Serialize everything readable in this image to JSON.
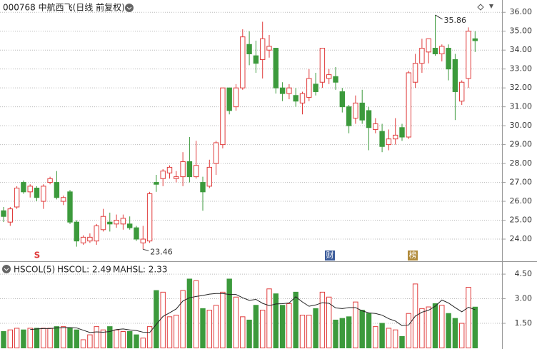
{
  "chart_data": [
    {
      "type": "candlestick",
      "title": "000768 中航西飞(日线 前复权)",
      "up_color": "#e03c3c",
      "down_color": "#3c9a3c",
      "open": [
        25.5,
        24.9,
        25.7,
        27.0,
        26.5,
        26.7,
        26.0,
        27.0,
        27.0,
        26.0,
        26.5,
        24.9,
        23.8,
        23.9,
        23.9,
        24.5,
        24.9,
        24.8,
        24.8,
        24.8,
        24.6,
        23.8,
        23.9,
        27.0,
        27.2,
        27.5,
        27.2,
        27.3,
        28.1,
        27.3,
        27.0,
        26.8,
        28.0,
        29.0,
        32.0,
        31.0,
        32.0,
        34.3,
        33.7,
        33.5,
        34.0,
        34.1,
        32.0,
        31.7,
        31.6,
        31.2,
        31.5,
        32.2,
        32.3,
        32.5,
        32.6,
        31.8,
        31.0,
        30.4,
        31.2,
        30.8,
        29.8,
        29.7,
        29.0,
        29.3,
        29.9,
        29.4,
        32.3,
        33.3,
        33.9,
        34.1,
        33.8,
        34.1,
        33.5,
        31.3,
        32.5,
        34.6
      ],
      "close": [
        25.2,
        25.6,
        26.7,
        26.5,
        26.8,
        26.2,
        26.8,
        27.2,
        26.2,
        26.2,
        24.9,
        23.9,
        24.1,
        24.1,
        24.7,
        25.2,
        24.8,
        25.0,
        25.1,
        24.6,
        24.0,
        24.0,
        26.4,
        26.9,
        27.6,
        27.8,
        27.3,
        28.1,
        27.3,
        27.9,
        26.5,
        27.8,
        29.1,
        32.0,
        30.8,
        32.0,
        34.7,
        33.8,
        33.3,
        34.6,
        34.2,
        32.0,
        31.7,
        32.0,
        31.3,
        31.7,
        32.5,
        31.8,
        34.1,
        32.7,
        32.3,
        31.0,
        30.0,
        31.2,
        30.3,
        29.9,
        30.1,
        28.9,
        29.3,
        29.5,
        29.4,
        32.8,
        33.3,
        34.1,
        34.6,
        33.8,
        34.2,
        33.0,
        31.8,
        32.3,
        35.0,
        34.5
      ],
      "high": [
        25.7,
        25.7,
        26.8,
        27.1,
        26.9,
        26.8,
        26.9,
        27.3,
        27.6,
        26.3,
        26.6,
        25.0,
        24.2,
        24.3,
        24.8,
        25.6,
        25.4,
        25.3,
        25.3,
        25.2,
        24.7,
        24.7,
        26.5,
        27.4,
        27.7,
        27.9,
        27.6,
        28.6,
        29.4,
        29.2,
        27.3,
        28.2,
        29.2,
        32.0,
        32.0,
        32.2,
        35.1,
        35.0,
        34.5,
        35.5,
        34.8,
        34.1,
        32.3,
        32.2,
        32.0,
        31.8,
        33.0,
        32.8,
        34.1,
        33.0,
        33.1,
        32.0,
        31.1,
        31.6,
        31.9,
        31.0,
        30.4,
        30.1,
        29.8,
        30.4,
        30.1,
        32.9,
        33.8,
        34.6,
        34.6,
        35.86,
        34.3,
        34.3,
        33.8,
        32.4,
        35.2,
        35.0
      ],
      "low": [
        24.9,
        24.7,
        25.6,
        26.4,
        26.2,
        26.0,
        25.6,
        26.9,
        26.1,
        25.8,
        24.8,
        23.6,
        23.7,
        23.8,
        23.7,
        24.4,
        24.4,
        24.6,
        24.5,
        24.5,
        23.9,
        23.46,
        23.8,
        26.5,
        26.8,
        27.2,
        27.0,
        26.8,
        27.0,
        27.2,
        25.5,
        26.7,
        27.4,
        28.8,
        30.6,
        30.8,
        31.9,
        33.2,
        32.8,
        32.5,
        33.6,
        31.7,
        31.3,
        31.4,
        31.0,
        30.6,
        31.3,
        31.6,
        32.0,
        32.2,
        31.9,
        30.7,
        29.6,
        30.1,
        30.1,
        28.7,
        29.6,
        28.6,
        28.7,
        29.0,
        29.2,
        29.3,
        32.0,
        32.8,
        33.3,
        33.7,
        33.4,
        32.4,
        30.3,
        31.1,
        32.0,
        33.9
      ],
      "ylim": [
        23,
        36.5
      ],
      "yticks": [
        {
          "value": 24,
          "label": "24.00"
        },
        {
          "value": 25,
          "label": "25.00"
        },
        {
          "value": 26,
          "label": "26.00"
        },
        {
          "value": 27,
          "label": "27.00"
        },
        {
          "value": 28,
          "label": "28.00"
        },
        {
          "value": 29,
          "label": "29.00"
        },
        {
          "value": 30,
          "label": "30.00"
        },
        {
          "value": 31,
          "label": "31.00"
        },
        {
          "value": 32,
          "label": "32.00"
        },
        {
          "value": 33,
          "label": "33.00"
        },
        {
          "value": 34,
          "label": "34.00"
        },
        {
          "value": 35,
          "label": "35.00"
        },
        {
          "value": 36,
          "label": "36.00"
        }
      ],
      "max_label": "35.86",
      "min_label": "23.46",
      "markers": [
        "S",
        "财",
        "榜"
      ]
    },
    {
      "type": "bar",
      "title": "HSCOL(5)",
      "readouts": [
        "HSCOL: 2.49",
        "MAHSL: 2.33"
      ],
      "series": [
        {
          "name": "HSCOL",
          "values": [
            1.0,
            1.1,
            1.2,
            1.1,
            1.2,
            1.2,
            1.2,
            1.2,
            1.3,
            1.3,
            1.2,
            1.1,
            0.5,
            0.8,
            1.3,
            1.1,
            1.3,
            1.1,
            1.0,
            1.0,
            0.8,
            0.6,
            1.3,
            3.5,
            3.4,
            1.9,
            2.0,
            3.5,
            4.2,
            4.1,
            2.4,
            2.3,
            2.6,
            3.4,
            4.2,
            3.1,
            1.9,
            1.7,
            2.6,
            2.3,
            3.6,
            3.3,
            2.6,
            2.7,
            3.4,
            2.0,
            2.0,
            2.4,
            3.4,
            3.1,
            1.7,
            1.8,
            1.9,
            2.8,
            2.3,
            2.1,
            1.3,
            1.5,
            1.2,
            1.1,
            0.7,
            2.1,
            3.9,
            2.4,
            2.5,
            2.7,
            2.6,
            2.1,
            1.8,
            1.5,
            3.7,
            2.49
          ]
        },
        {
          "name": "MAHSL",
          "color": "#222222",
          "values": [
            null,
            null,
            null,
            null,
            1.12,
            1.16,
            1.18,
            1.18,
            1.22,
            1.24,
            1.24,
            1.22,
            1.08,
            0.94,
            0.98,
            0.96,
            1.0,
            1.12,
            1.16,
            1.1,
            1.06,
            0.96,
            0.94,
            1.44,
            1.92,
            2.14,
            2.38,
            2.86,
            3.06,
            3.14,
            3.2,
            3.28,
            3.32,
            3.32,
            3.26,
            3.26,
            3.06,
            2.9,
            2.96,
            2.72,
            2.58,
            2.68,
            2.7,
            2.74,
            3.12,
            2.8,
            2.54,
            2.62,
            2.76,
            2.72,
            2.44,
            2.4,
            2.46,
            2.46,
            2.26,
            2.14,
            2.1,
            2.0,
            1.78,
            1.64,
            1.36,
            1.4,
            1.94,
            2.18,
            2.3,
            2.54,
            2.92,
            2.74,
            2.46,
            2.2,
            2.48,
            2.33
          ]
        }
      ],
      "ylim": [
        0,
        5.2
      ],
      "yticks": [
        {
          "value": 1.5,
          "label": "1.50"
        },
        {
          "value": 3,
          "label": "3.00"
        },
        {
          "value": 4.5,
          "label": "4.50"
        }
      ]
    }
  ]
}
